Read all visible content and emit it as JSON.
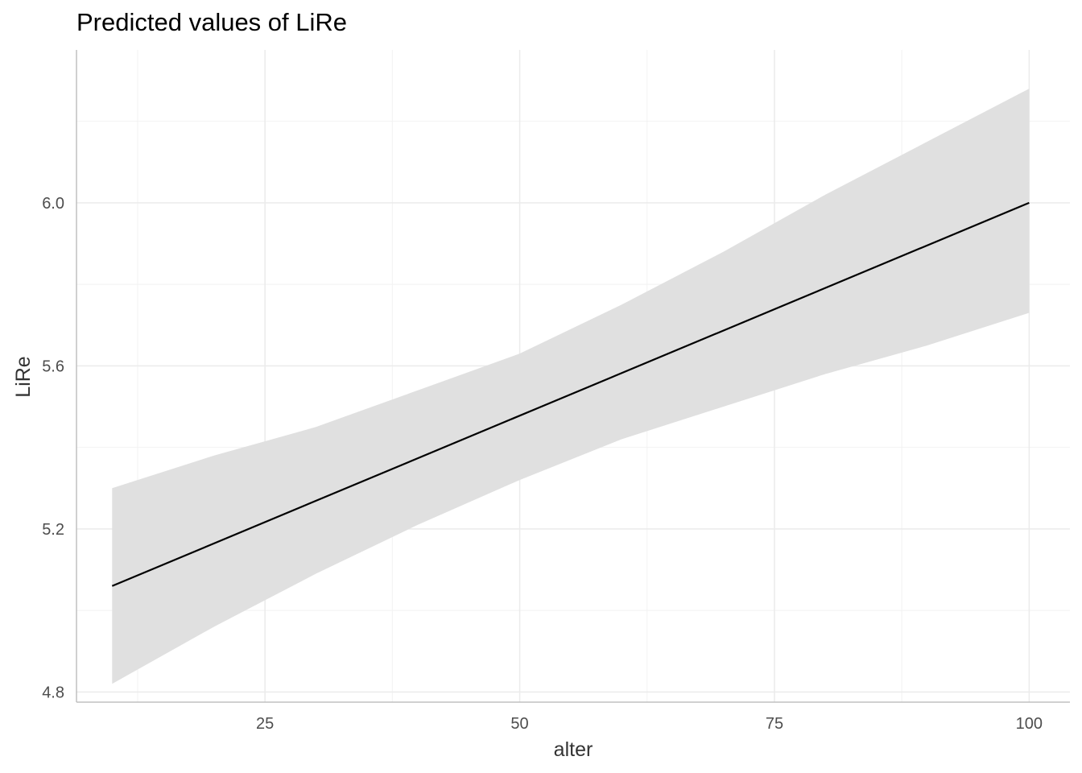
{
  "chart_data": {
    "type": "line",
    "title": "Predicted values of LiRe",
    "xlabel": "alter",
    "ylabel": "LiRe",
    "xlim": [
      6.5,
      104
    ],
    "ylim": [
      4.775,
      6.375
    ],
    "x_ticks": [
      25,
      50,
      75,
      100
    ],
    "y_ticks": [
      4.8,
      5.2,
      5.6,
      6.0
    ],
    "x_tick_labels": [
      "25",
      "50",
      "75",
      "100"
    ],
    "y_tick_labels": [
      "4.8",
      "5.2",
      "5.6",
      "6.0"
    ],
    "grid": true,
    "legend": "none",
    "series": [
      {
        "x": [
          10,
          100
        ],
        "y": [
          5.06,
          6.0
        ],
        "color": "#000000"
      }
    ],
    "ribbon": {
      "x": [
        10,
        20,
        30,
        40,
        50,
        60,
        70,
        80,
        90,
        100
      ],
      "lower": [
        4.82,
        4.96,
        5.09,
        5.21,
        5.32,
        5.42,
        5.5,
        5.58,
        5.65,
        5.73
      ],
      "upper": [
        5.3,
        5.38,
        5.45,
        5.54,
        5.63,
        5.75,
        5.88,
        6.02,
        6.15,
        6.28
      ],
      "color": "#e0e0e0"
    },
    "colors": {
      "major_grid": "#ebebeb",
      "minor_grid": "#f2f2f2",
      "axis_line": "#c0c0c0",
      "line": "#000000",
      "ribbon": "#e0e0e0"
    }
  }
}
